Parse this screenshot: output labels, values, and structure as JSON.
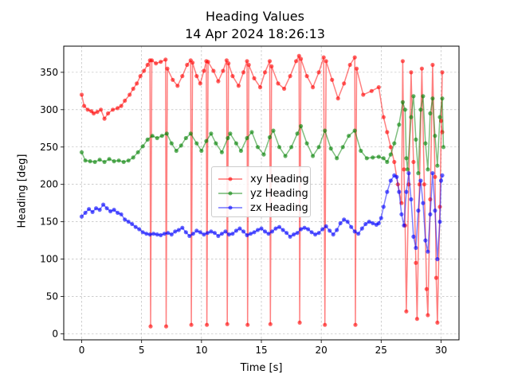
{
  "chart_data": {
    "type": "line",
    "title": "Heading Values",
    "subtitle": "14 Apr 2024 18:26:13",
    "xlabel": "Time [s]",
    "ylabel": "Heading [deg]",
    "xlim": [
      -1.5,
      31.5
    ],
    "ylim": [
      -8,
      385
    ],
    "xticks": [
      0,
      5,
      10,
      15,
      20,
      25,
      30
    ],
    "yticks": [
      0,
      50,
      100,
      150,
      200,
      250,
      300,
      350
    ],
    "grid": true,
    "legend_position": "center",
    "series": [
      {
        "name": "xy Heading",
        "color": "#ff0000",
        "points": [
          [
            0.0,
            320
          ],
          [
            0.2,
            305
          ],
          [
            0.5,
            300
          ],
          [
            0.8,
            298
          ],
          [
            1.0,
            295
          ],
          [
            1.3,
            297
          ],
          [
            1.6,
            300
          ],
          [
            1.9,
            288
          ],
          [
            2.2,
            295
          ],
          [
            2.6,
            300
          ],
          [
            3.0,
            302
          ],
          [
            3.3,
            305
          ],
          [
            3.6,
            312
          ],
          [
            4.0,
            320
          ],
          [
            4.3,
            328
          ],
          [
            4.6,
            335
          ],
          [
            4.9,
            345
          ],
          [
            5.2,
            352
          ],
          [
            5.5,
            360
          ],
          [
            5.7,
            366
          ],
          [
            5.75,
            10
          ],
          [
            5.85,
            366
          ],
          [
            6.2,
            362
          ],
          [
            6.6,
            364
          ],
          [
            7.0,
            367
          ],
          [
            7.05,
            10
          ],
          [
            7.15,
            355
          ],
          [
            7.6,
            340
          ],
          [
            8.0,
            332
          ],
          [
            8.4,
            345
          ],
          [
            8.8,
            360
          ],
          [
            9.1,
            366
          ],
          [
            9.15,
            12
          ],
          [
            9.25,
            363
          ],
          [
            9.6,
            345
          ],
          [
            9.9,
            335
          ],
          [
            10.2,
            352
          ],
          [
            10.4,
            365
          ],
          [
            10.45,
            12
          ],
          [
            10.55,
            364
          ],
          [
            11.0,
            352
          ],
          [
            11.4,
            338
          ],
          [
            11.8,
            352
          ],
          [
            12.1,
            366
          ],
          [
            12.15,
            13
          ],
          [
            12.25,
            362
          ],
          [
            12.6,
            345
          ],
          [
            13.1,
            332
          ],
          [
            13.5,
            350
          ],
          [
            13.8,
            365
          ],
          [
            13.85,
            12
          ],
          [
            13.95,
            360
          ],
          [
            14.4,
            342
          ],
          [
            14.9,
            330
          ],
          [
            15.3,
            350
          ],
          [
            15.7,
            365
          ],
          [
            15.75,
            13
          ],
          [
            15.85,
            358
          ],
          [
            16.4,
            335
          ],
          [
            16.9,
            328
          ],
          [
            17.4,
            345
          ],
          [
            17.9,
            365
          ],
          [
            18.15,
            372
          ],
          [
            18.2,
            15
          ],
          [
            18.3,
            368
          ],
          [
            18.8,
            345
          ],
          [
            19.3,
            330
          ],
          [
            19.8,
            350
          ],
          [
            20.2,
            370
          ],
          [
            20.3,
            12
          ],
          [
            20.4,
            365
          ],
          [
            20.9,
            340
          ],
          [
            21.4,
            315
          ],
          [
            21.9,
            335
          ],
          [
            22.4,
            360
          ],
          [
            22.8,
            370
          ],
          [
            22.85,
            12
          ],
          [
            22.95,
            355
          ],
          [
            23.5,
            320
          ],
          [
            24.2,
            325
          ],
          [
            24.8,
            330
          ],
          [
            25.2,
            290
          ],
          [
            25.5,
            270
          ],
          [
            25.8,
            250
          ],
          [
            26.1,
            230
          ],
          [
            26.4,
            200
          ],
          [
            26.7,
            175
          ],
          [
            26.8,
            365
          ],
          [
            26.9,
            220
          ],
          [
            27.0,
            145
          ],
          [
            27.1,
            30
          ],
          [
            27.3,
            200
          ],
          [
            27.5,
            350
          ],
          [
            27.7,
            230
          ],
          [
            27.9,
            95
          ],
          [
            28.0,
            20
          ],
          [
            28.2,
            200
          ],
          [
            28.4,
            355
          ],
          [
            28.6,
            200
          ],
          [
            28.8,
            60
          ],
          [
            28.9,
            25
          ],
          [
            29.1,
            180
          ],
          [
            29.3,
            360
          ],
          [
            29.5,
            210
          ],
          [
            29.6,
            75
          ],
          [
            29.7,
            15
          ],
          [
            29.9,
            170
          ],
          [
            30.1,
            350
          ],
          [
            30.0,
            285
          ],
          [
            30.1,
            270
          ]
        ]
      },
      {
        "name": "yz Heading",
        "color": "#008000",
        "points": [
          [
            0.0,
            243
          ],
          [
            0.3,
            232
          ],
          [
            0.7,
            231
          ],
          [
            1.1,
            230
          ],
          [
            1.5,
            233
          ],
          [
            1.9,
            230
          ],
          [
            2.3,
            234
          ],
          [
            2.7,
            231
          ],
          [
            3.1,
            232
          ],
          [
            3.5,
            230
          ],
          [
            3.9,
            232
          ],
          [
            4.3,
            236
          ],
          [
            4.7,
            243
          ],
          [
            5.1,
            251
          ],
          [
            5.5,
            260
          ],
          [
            5.9,
            265
          ],
          [
            6.3,
            262
          ],
          [
            6.7,
            265
          ],
          [
            7.1,
            268
          ],
          [
            7.5,
            255
          ],
          [
            7.9,
            245
          ],
          [
            8.3,
            252
          ],
          [
            8.7,
            262
          ],
          [
            9.1,
            268
          ],
          [
            9.6,
            255
          ],
          [
            10.0,
            245
          ],
          [
            10.4,
            258
          ],
          [
            10.8,
            268
          ],
          [
            11.2,
            255
          ],
          [
            11.7,
            243
          ],
          [
            12.2,
            262
          ],
          [
            12.4,
            268
          ],
          [
            12.9,
            255
          ],
          [
            13.3,
            245
          ],
          [
            13.8,
            262
          ],
          [
            14.2,
            270
          ],
          [
            14.7,
            250
          ],
          [
            15.2,
            240
          ],
          [
            15.7,
            263
          ],
          [
            16.0,
            272
          ],
          [
            16.5,
            250
          ],
          [
            17.0,
            238
          ],
          [
            17.5,
            250
          ],
          [
            18.0,
            268
          ],
          [
            18.3,
            278
          ],
          [
            18.8,
            255
          ],
          [
            19.3,
            238
          ],
          [
            19.8,
            250
          ],
          [
            20.3,
            272
          ],
          [
            20.8,
            248
          ],
          [
            21.3,
            235
          ],
          [
            21.8,
            250
          ],
          [
            22.3,
            265
          ],
          [
            22.8,
            272
          ],
          [
            23.3,
            245
          ],
          [
            23.8,
            235
          ],
          [
            24.3,
            236
          ],
          [
            24.8,
            237
          ],
          [
            25.2,
            235
          ],
          [
            25.5,
            230
          ],
          [
            25.8,
            240
          ],
          [
            26.1,
            255
          ],
          [
            26.5,
            280
          ],
          [
            26.8,
            310
          ],
          [
            27.0,
            300
          ],
          [
            27.1,
            235
          ],
          [
            27.2,
            220
          ],
          [
            27.5,
            290
          ],
          [
            27.7,
            318
          ],
          [
            27.9,
            260
          ],
          [
            28.1,
            215
          ],
          [
            28.3,
            300
          ],
          [
            28.5,
            318
          ],
          [
            28.7,
            255
          ],
          [
            28.9,
            220
          ],
          [
            29.1,
            295
          ],
          [
            29.3,
            315
          ],
          [
            29.5,
            265
          ],
          [
            29.7,
            225
          ],
          [
            29.9,
            290
          ],
          [
            30.1,
            315
          ],
          [
            30.2,
            250
          ]
        ]
      },
      {
        "name": "zx Heading",
        "color": "#0000ff",
        "points": [
          [
            0.0,
            157
          ],
          [
            0.3,
            162
          ],
          [
            0.6,
            167
          ],
          [
            0.9,
            163
          ],
          [
            1.2,
            168
          ],
          [
            1.5,
            166
          ],
          [
            1.8,
            173
          ],
          [
            2.1,
            168
          ],
          [
            2.4,
            164
          ],
          [
            2.7,
            166
          ],
          [
            3.0,
            162
          ],
          [
            3.3,
            160
          ],
          [
            3.6,
            153
          ],
          [
            3.9,
            150
          ],
          [
            4.2,
            147
          ],
          [
            4.5,
            143
          ],
          [
            4.8,
            140
          ],
          [
            5.1,
            136
          ],
          [
            5.4,
            134
          ],
          [
            5.7,
            133
          ],
          [
            6.0,
            134
          ],
          [
            6.3,
            133
          ],
          [
            6.6,
            132
          ],
          [
            6.9,
            134
          ],
          [
            7.2,
            135
          ],
          [
            7.5,
            133
          ],
          [
            7.8,
            137
          ],
          [
            8.1,
            139
          ],
          [
            8.4,
            142
          ],
          [
            8.7,
            136
          ],
          [
            9.0,
            131
          ],
          [
            9.3,
            134
          ],
          [
            9.6,
            138
          ],
          [
            9.9,
            136
          ],
          [
            10.2,
            133
          ],
          [
            10.5,
            135
          ],
          [
            10.8,
            137
          ],
          [
            11.1,
            135
          ],
          [
            11.4,
            131
          ],
          [
            11.7,
            134
          ],
          [
            12.0,
            137
          ],
          [
            12.3,
            133
          ],
          [
            12.6,
            134
          ],
          [
            12.9,
            138
          ],
          [
            13.2,
            141
          ],
          [
            13.5,
            137
          ],
          [
            13.8,
            132
          ],
          [
            14.1,
            134
          ],
          [
            14.4,
            136
          ],
          [
            14.7,
            139
          ],
          [
            15.0,
            141
          ],
          [
            15.3,
            137
          ],
          [
            15.6,
            134
          ],
          [
            15.9,
            137
          ],
          [
            16.2,
            141
          ],
          [
            16.5,
            143
          ],
          [
            16.8,
            139
          ],
          [
            17.1,
            135
          ],
          [
            17.4,
            130
          ],
          [
            17.7,
            133
          ],
          [
            18.0,
            135
          ],
          [
            18.3,
            140
          ],
          [
            18.6,
            142
          ],
          [
            18.9,
            140
          ],
          [
            19.2,
            136
          ],
          [
            19.5,
            133
          ],
          [
            19.8,
            135
          ],
          [
            20.1,
            140
          ],
          [
            20.4,
            144
          ],
          [
            20.7,
            138
          ],
          [
            21.0,
            133
          ],
          [
            21.3,
            139
          ],
          [
            21.6,
            148
          ],
          [
            21.9,
            153
          ],
          [
            22.2,
            150
          ],
          [
            22.5,
            143
          ],
          [
            22.8,
            137
          ],
          [
            23.1,
            134
          ],
          [
            23.4,
            141
          ],
          [
            23.7,
            147
          ],
          [
            24.0,
            150
          ],
          [
            24.3,
            148
          ],
          [
            24.6,
            146
          ],
          [
            24.8,
            148
          ],
          [
            25.0,
            155
          ],
          [
            25.2,
            170
          ],
          [
            25.5,
            190
          ],
          [
            25.8,
            205
          ],
          [
            26.1,
            212
          ],
          [
            26.3,
            210
          ],
          [
            26.5,
            190
          ],
          [
            26.7,
            160
          ],
          [
            26.9,
            145
          ],
          [
            27.1,
            190
          ],
          [
            27.3,
            215
          ],
          [
            27.5,
            180
          ],
          [
            27.7,
            130
          ],
          [
            27.9,
            115
          ],
          [
            28.1,
            165
          ],
          [
            28.3,
            205
          ],
          [
            28.5,
            175
          ],
          [
            28.7,
            125
          ],
          [
            28.9,
            110
          ],
          [
            29.1,
            160
          ],
          [
            29.3,
            215
          ],
          [
            29.5,
            165
          ],
          [
            29.7,
            100
          ],
          [
            29.9,
            150
          ],
          [
            30.0,
            205
          ],
          [
            30.1,
            212
          ]
        ]
      }
    ]
  }
}
